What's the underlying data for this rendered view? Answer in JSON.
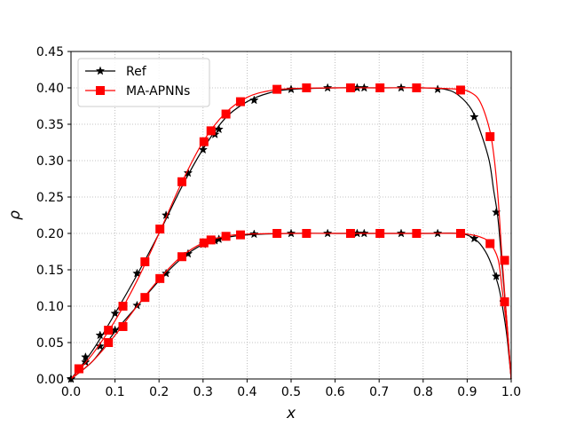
{
  "chart_data": {
    "type": "line",
    "title": "",
    "xlabel": "x",
    "ylabel": "ρ",
    "xlim": [
      0.0,
      1.0
    ],
    "ylim": [
      0.0,
      0.45
    ],
    "grid": true,
    "legend_position": "top-left",
    "xticks": [
      "0.0",
      "0.1",
      "0.2",
      "0.3",
      "0.4",
      "0.5",
      "0.6",
      "0.7",
      "0.8",
      "0.9",
      "1.0"
    ],
    "yticks": [
      "0.00",
      "0.05",
      "0.10",
      "0.15",
      "0.20",
      "0.25",
      "0.30",
      "0.35",
      "0.40",
      "0.45"
    ],
    "series": [
      {
        "name": "Ref",
        "color": "#000000",
        "marker": "star",
        "legend_label": "Ref",
        "curves": [
          {
            "line": [
              [
                0.0,
                0.0
              ],
              [
                0.05,
                0.04
              ],
              [
                0.1,
                0.09
              ],
              [
                0.15,
                0.143
              ],
              [
                0.2,
                0.2
              ],
              [
                0.25,
                0.262
              ],
              [
                0.3,
                0.316
              ],
              [
                0.35,
                0.358
              ],
              [
                0.4,
                0.381
              ],
              [
                0.45,
                0.393
              ],
              [
                0.5,
                0.398
              ],
              [
                0.6,
                0.4
              ],
              [
                0.7,
                0.4
              ],
              [
                0.8,
                0.4
              ],
              [
                0.85,
                0.398
              ],
              [
                0.88,
                0.39
              ],
              [
                0.91,
                0.37
              ],
              [
                0.93,
                0.34
              ],
              [
                0.95,
                0.3
              ],
              [
                0.96,
                0.26
              ],
              [
                0.97,
                0.22
              ],
              [
                0.98,
                0.15
              ],
              [
                0.99,
                0.08
              ],
              [
                1.0,
                0.0
              ]
            ],
            "markers": [
              [
                0.0,
                0.0
              ],
              [
                0.033,
                0.03
              ],
              [
                0.066,
                0.06
              ],
              [
                0.1,
                0.09
              ],
              [
                0.15,
                0.145
              ],
              [
                0.216,
                0.225
              ],
              [
                0.266,
                0.283
              ],
              [
                0.3,
                0.315
              ],
              [
                0.327,
                0.336
              ],
              [
                0.336,
                0.343
              ],
              [
                0.416,
                0.383
              ],
              [
                0.5,
                0.398
              ],
              [
                0.583,
                0.4
              ],
              [
                0.65,
                0.4
              ],
              [
                0.666,
                0.4
              ],
              [
                0.75,
                0.4
              ],
              [
                0.833,
                0.398
              ],
              [
                0.916,
                0.36
              ],
              [
                0.966,
                0.229
              ],
              [
                0.983,
                0.105
              ]
            ]
          },
          {
            "line": [
              [
                0.0,
                0.0
              ],
              [
                0.05,
                0.025
              ],
              [
                0.1,
                0.065
              ],
              [
                0.15,
                0.1
              ],
              [
                0.2,
                0.135
              ],
              [
                0.25,
                0.165
              ],
              [
                0.3,
                0.185
              ],
              [
                0.35,
                0.194
              ],
              [
                0.4,
                0.198
              ],
              [
                0.5,
                0.2
              ],
              [
                0.6,
                0.2
              ],
              [
                0.7,
                0.2
              ],
              [
                0.8,
                0.2
              ],
              [
                0.88,
                0.2
              ],
              [
                0.91,
                0.195
              ],
              [
                0.93,
                0.185
              ],
              [
                0.95,
                0.165
              ],
              [
                0.97,
                0.13
              ],
              [
                0.98,
                0.1
              ],
              [
                0.99,
                0.06
              ],
              [
                1.0,
                0.0
              ]
            ],
            "markers": [
              [
                0.0,
                0.0
              ],
              [
                0.033,
                0.023
              ],
              [
                0.066,
                0.045
              ],
              [
                0.1,
                0.067
              ],
              [
                0.15,
                0.101
              ],
              [
                0.216,
                0.145
              ],
              [
                0.266,
                0.172
              ],
              [
                0.3,
                0.185
              ],
              [
                0.327,
                0.19
              ],
              [
                0.336,
                0.192
              ],
              [
                0.416,
                0.199
              ],
              [
                0.5,
                0.2
              ],
              [
                0.583,
                0.2
              ],
              [
                0.65,
                0.2
              ],
              [
                0.666,
                0.2
              ],
              [
                0.75,
                0.2
              ],
              [
                0.833,
                0.2
              ],
              [
                0.916,
                0.193
              ],
              [
                0.966,
                0.141
              ],
              [
                0.983,
                0.106
              ]
            ]
          }
        ]
      },
      {
        "name": "MA-APNNs",
        "color": "#ff0000",
        "marker": "square",
        "legend_label": "MA-APNNs",
        "curves": [
          {
            "line": [
              [
                0.0,
                0.0
              ],
              [
                0.05,
                0.035
              ],
              [
                0.1,
                0.08
              ],
              [
                0.15,
                0.135
              ],
              [
                0.2,
                0.2
              ],
              [
                0.25,
                0.268
              ],
              [
                0.3,
                0.326
              ],
              [
                0.35,
                0.365
              ],
              [
                0.4,
                0.387
              ],
              [
                0.45,
                0.396
              ],
              [
                0.5,
                0.399
              ],
              [
                0.6,
                0.4
              ],
              [
                0.7,
                0.4
              ],
              [
                0.8,
                0.4
              ],
              [
                0.88,
                0.398
              ],
              [
                0.91,
                0.393
              ],
              [
                0.93,
                0.38
              ],
              [
                0.95,
                0.345
              ],
              [
                0.96,
                0.31
              ],
              [
                0.97,
                0.25
              ],
              [
                0.98,
                0.16
              ],
              [
                0.99,
                0.08
              ],
              [
                1.0,
                0.0
              ]
            ],
            "markers": [
              [
                0.018,
                0.014
              ],
              [
                0.085,
                0.067
              ],
              [
                0.118,
                0.1
              ],
              [
                0.168,
                0.161
              ],
              [
                0.202,
                0.206
              ],
              [
                0.252,
                0.271
              ],
              [
                0.302,
                0.326
              ],
              [
                0.318,
                0.341
              ],
              [
                0.352,
                0.364
              ],
              [
                0.385,
                0.381
              ],
              [
                0.468,
                0.398
              ],
              [
                0.535,
                0.4
              ],
              [
                0.635,
                0.4
              ],
              [
                0.702,
                0.4
              ],
              [
                0.785,
                0.4
              ],
              [
                0.885,
                0.397
              ],
              [
                0.952,
                0.333
              ],
              [
                0.985,
                0.163
              ]
            ]
          },
          {
            "line": [
              [
                0.0,
                0.0
              ],
              [
                0.05,
                0.025
              ],
              [
                0.1,
                0.06
              ],
              [
                0.15,
                0.1
              ],
              [
                0.2,
                0.137
              ],
              [
                0.25,
                0.168
              ],
              [
                0.3,
                0.187
              ],
              [
                0.35,
                0.196
              ],
              [
                0.4,
                0.199
              ],
              [
                0.5,
                0.2
              ],
              [
                0.6,
                0.2
              ],
              [
                0.7,
                0.2
              ],
              [
                0.8,
                0.2
              ],
              [
                0.88,
                0.2
              ],
              [
                0.91,
                0.198
              ],
              [
                0.93,
                0.195
              ],
              [
                0.95,
                0.188
              ],
              [
                0.97,
                0.165
              ],
              [
                0.98,
                0.12
              ],
              [
                0.99,
                0.07
              ],
              [
                1.0,
                0.0
              ]
            ],
            "markers": [
              [
                0.018,
                0.014
              ],
              [
                0.085,
                0.05
              ],
              [
                0.118,
                0.072
              ],
              [
                0.168,
                0.112
              ],
              [
                0.202,
                0.138
              ],
              [
                0.252,
                0.168
              ],
              [
                0.302,
                0.187
              ],
              [
                0.318,
                0.191
              ],
              [
                0.352,
                0.196
              ],
              [
                0.385,
                0.198
              ],
              [
                0.468,
                0.2
              ],
              [
                0.535,
                0.2
              ],
              [
                0.635,
                0.2
              ],
              [
                0.702,
                0.2
              ],
              [
                0.785,
                0.2
              ],
              [
                0.885,
                0.2
              ],
              [
                0.952,
                0.186
              ],
              [
                0.985,
                0.106
              ]
            ]
          }
        ]
      }
    ]
  }
}
